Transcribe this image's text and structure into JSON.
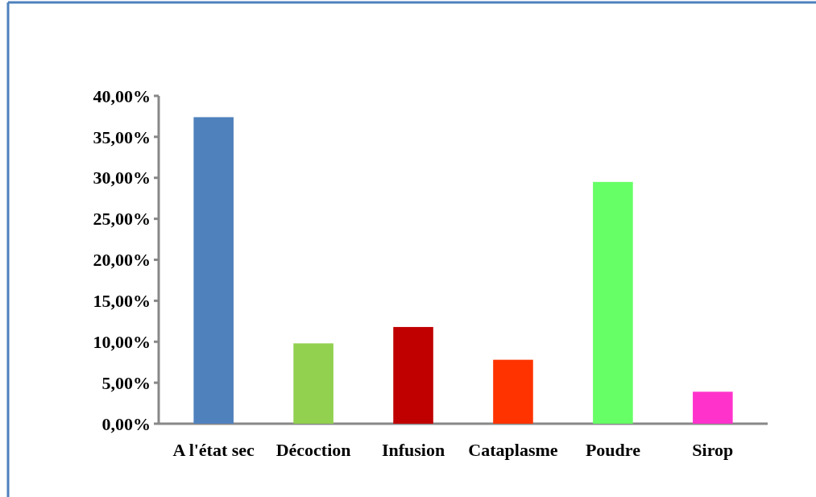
{
  "chart_data": {
    "type": "bar",
    "categories": [
      "A l'état sec",
      "Décoction",
      "Infusion",
      "Cataplasme",
      "Poudre",
      "Sirop"
    ],
    "values": [
      37.4,
      9.8,
      11.8,
      7.8,
      29.5,
      3.9
    ],
    "colors": [
      "#4f81bd",
      "#92d050",
      "#c00000",
      "#ff3300",
      "#66ff66",
      "#ff33cc"
    ],
    "ylim": [
      0,
      40
    ],
    "yticks": [
      {
        "value": 0,
        "label": "0,00%"
      },
      {
        "value": 5,
        "label": "5,00%"
      },
      {
        "value": 10,
        "label": "10,00%"
      },
      {
        "value": 15,
        "label": "15,00%"
      },
      {
        "value": 20,
        "label": "20,00%"
      },
      {
        "value": 25,
        "label": "25,00%"
      },
      {
        "value": 30,
        "label": "30,00%"
      },
      {
        "value": 35,
        "label": "35,00%"
      },
      {
        "value": 40,
        "label": "40,00%"
      }
    ],
    "grid": false
  }
}
